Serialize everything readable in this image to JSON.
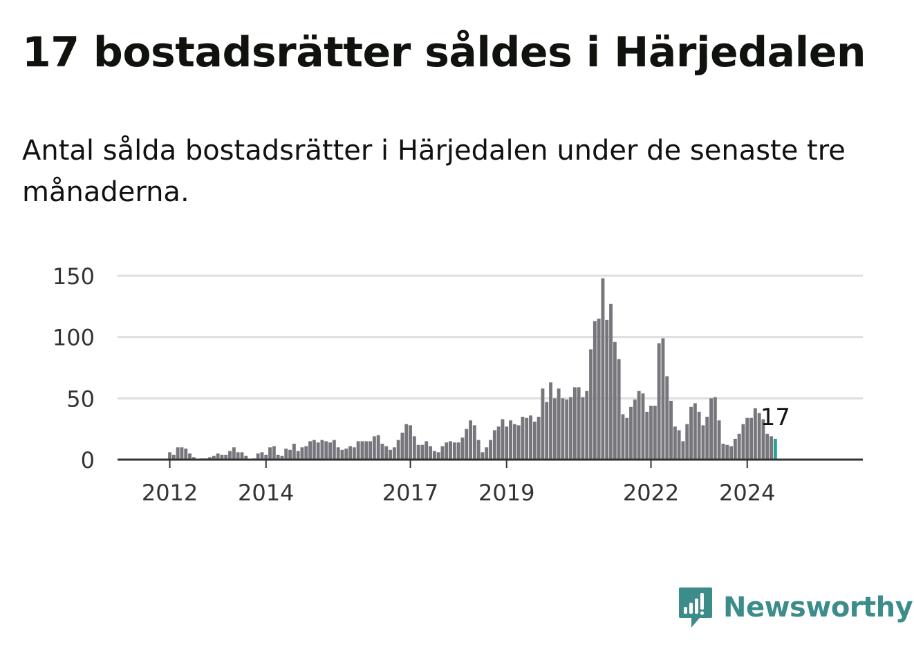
{
  "title": "17 bostadsrätter såldes i Härjedalen",
  "subtitle": "Antal sålda bostadsrätter i Härjedalen under de senaste tre månaderna.",
  "logo": {
    "text": "Newsworthy",
    "icon": "chart-speech-bubble-icon",
    "color": "#3c8c8a"
  },
  "chart_data": {
    "type": "bar",
    "start": "2011-01",
    "y_ticks": [
      0,
      50,
      100,
      150
    ],
    "ylim": [
      0,
      150
    ],
    "x_ticks": [
      {
        "label": "2012",
        "month": "2012-01"
      },
      {
        "label": "2014",
        "month": "2014-01"
      },
      {
        "label": "2017",
        "month": "2017-01"
      },
      {
        "label": "2019",
        "month": "2019-01"
      },
      {
        "label": "2022",
        "month": "2022-01"
      },
      {
        "label": "2024",
        "month": "2024-01"
      }
    ],
    "bar_color": "#77767c",
    "highlight_color": "#27a19a",
    "grid": true,
    "annotation": {
      "text": "17"
    },
    "values": [
      0,
      0,
      0,
      0,
      0,
      0,
      0,
      0,
      0,
      0,
      0,
      0,
      6,
      4,
      10,
      10,
      9,
      5,
      2,
      0,
      1,
      1,
      2,
      3,
      5,
      4,
      4,
      7,
      10,
      6,
      6,
      3,
      0,
      1,
      5,
      6,
      4,
      10,
      11,
      4,
      3,
      9,
      8,
      13,
      7,
      10,
      11,
      15,
      16,
      14,
      16,
      15,
      14,
      16,
      10,
      8,
      9,
      11,
      10,
      15,
      15,
      15,
      15,
      19,
      20,
      13,
      11,
      8,
      10,
      16,
      22,
      29,
      28,
      19,
      12,
      12,
      15,
      11,
      7,
      6,
      11,
      14,
      15,
      14,
      14,
      18,
      25,
      32,
      28,
      16,
      6,
      10,
      16,
      24,
      27,
      33,
      27,
      32,
      29,
      28,
      35,
      34,
      36,
      31,
      35,
      58,
      47,
      63,
      50,
      58,
      50,
      49,
      51,
      59,
      59,
      51,
      56,
      90,
      113,
      115,
      148,
      114,
      127,
      96,
      82,
      37,
      34,
      43,
      49,
      56,
      54,
      39,
      44,
      44,
      95,
      99,
      68,
      48,
      27,
      24,
      15,
      29,
      43,
      46,
      39,
      28,
      35,
      50,
      51,
      32,
      13,
      12,
      11,
      17,
      21,
      29,
      34,
      34,
      42,
      38,
      33,
      21,
      19,
      17
    ]
  }
}
